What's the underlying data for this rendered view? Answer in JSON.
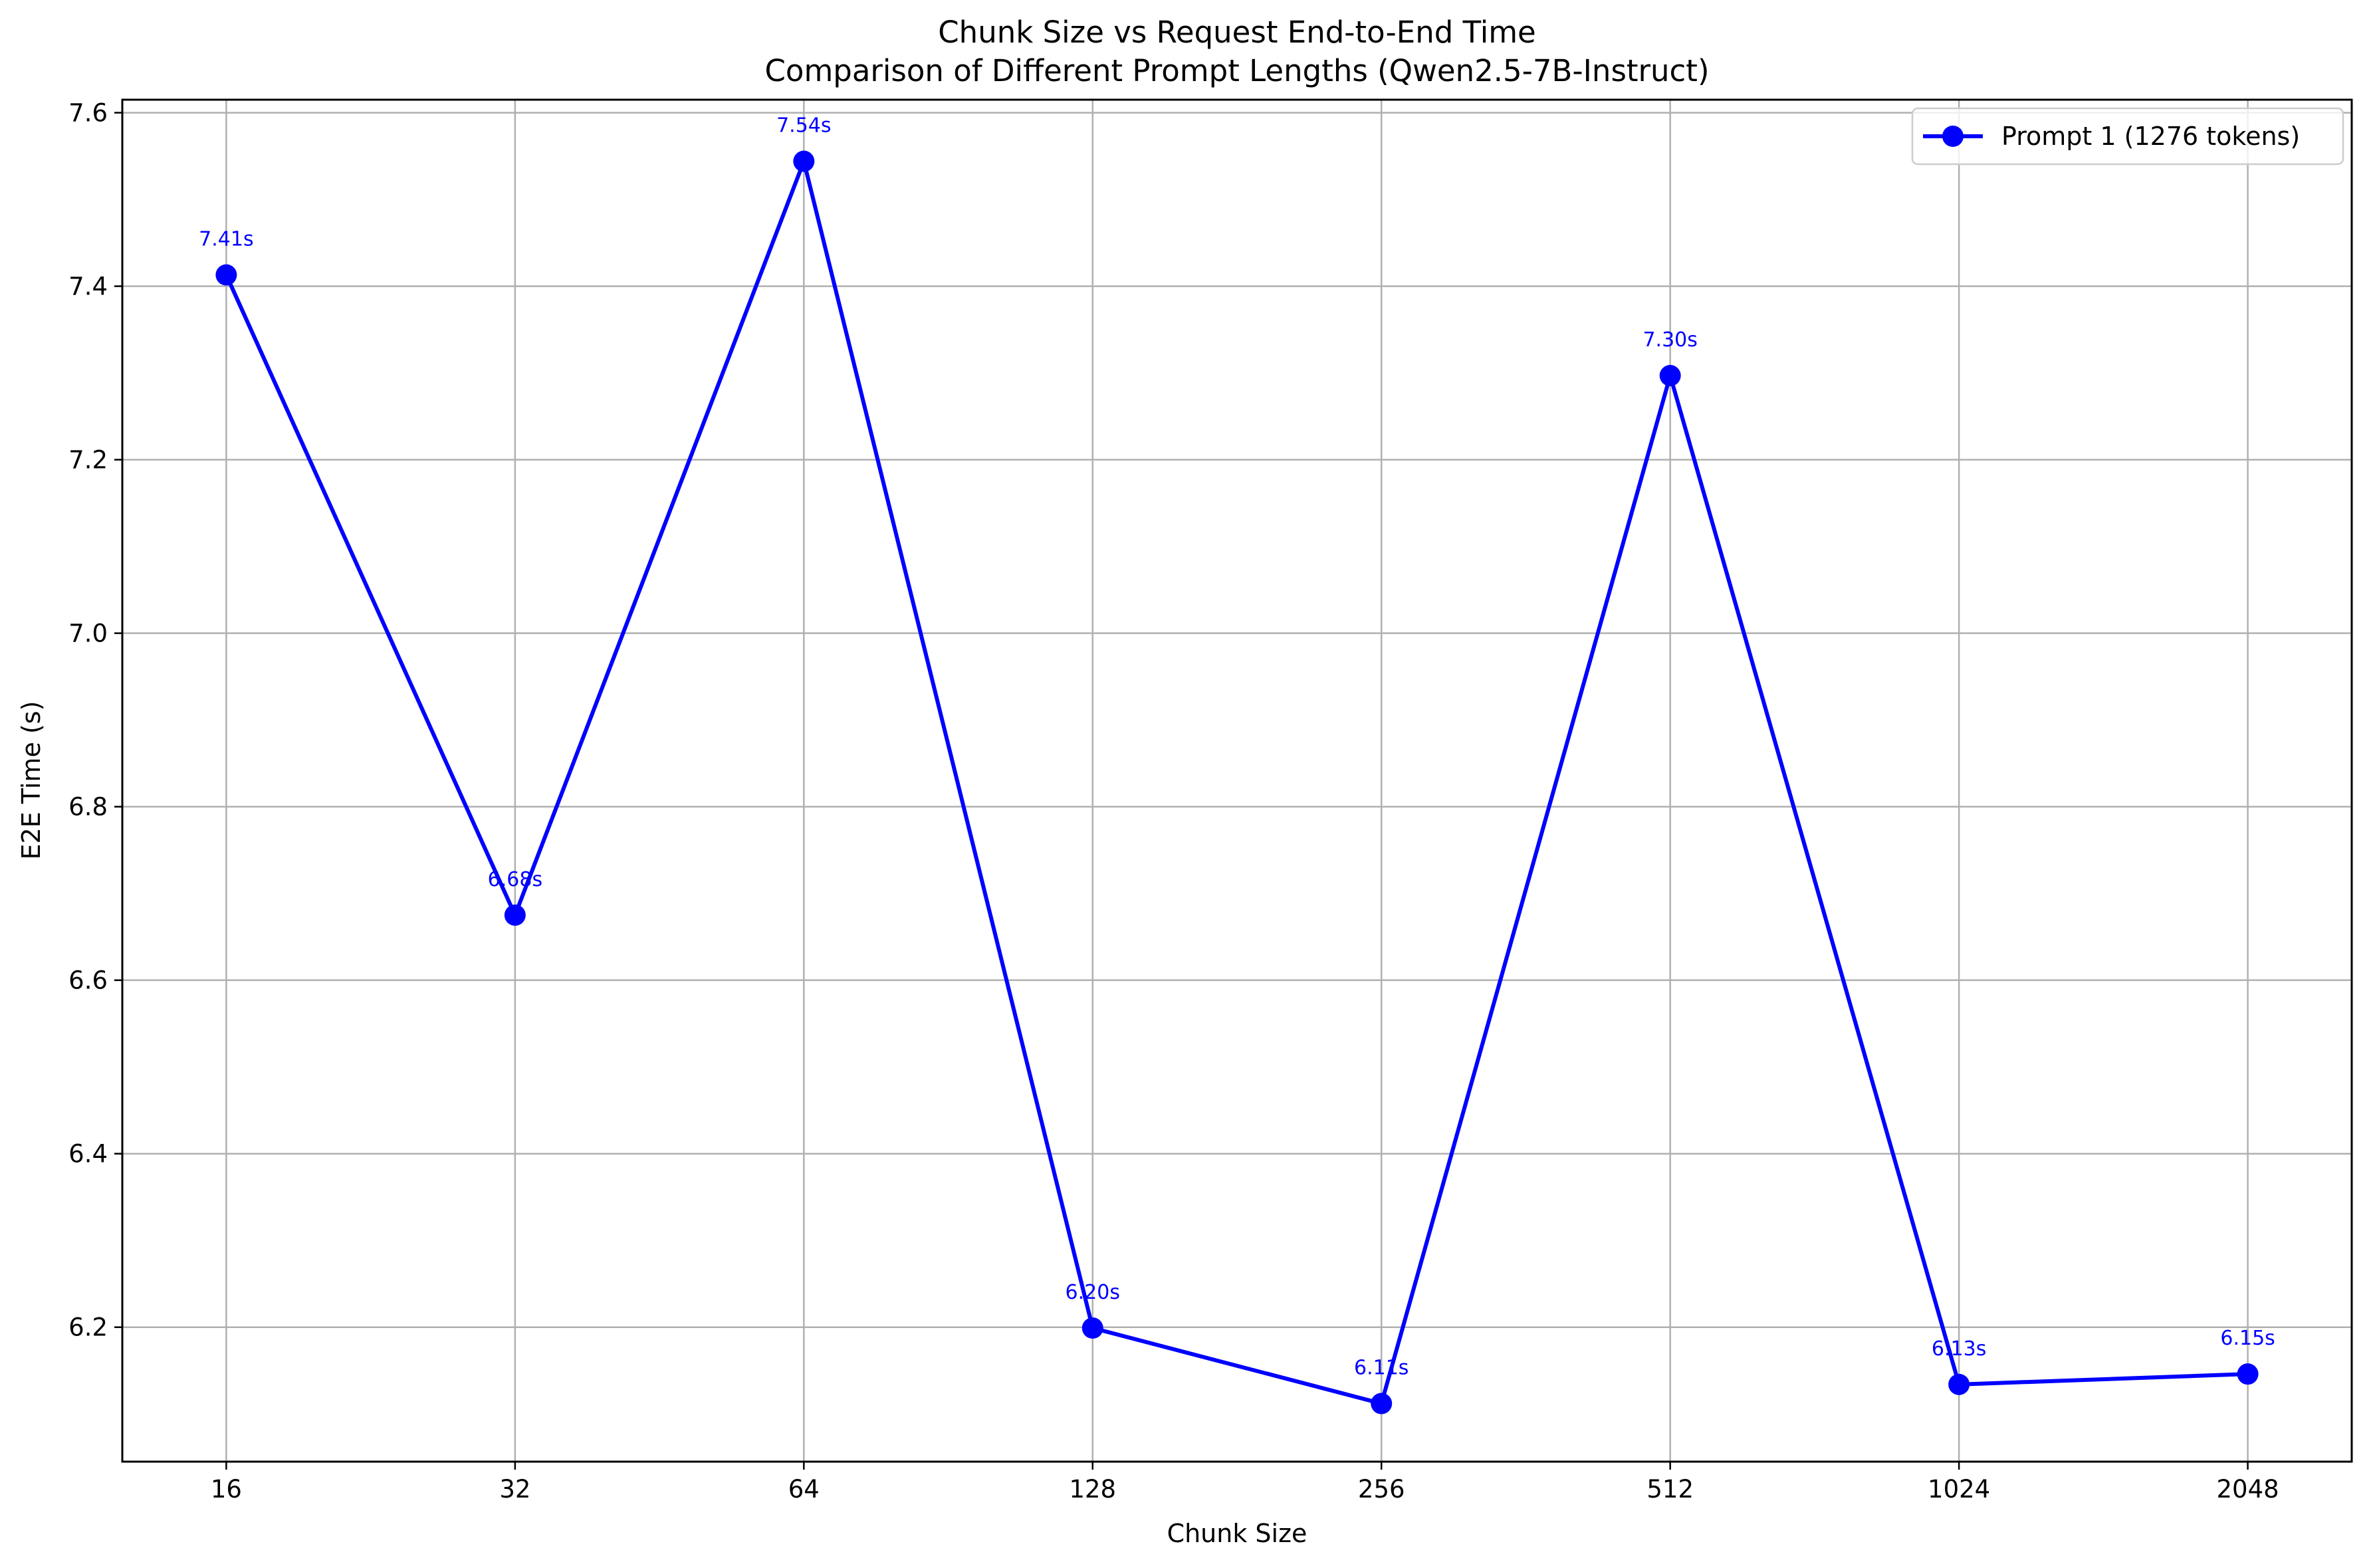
{
  "chart_data": {
    "type": "line",
    "title": "Chunk Size vs Request End-to-End Time",
    "subtitle": "Comparison of Different Prompt Lengths (Qwen2.5-7B-Instruct)",
    "xlabel": "Chunk Size",
    "ylabel": "E2E Time (s)",
    "categories": [
      "16",
      "32",
      "64",
      "128",
      "256",
      "512",
      "1024",
      "2048"
    ],
    "ylim": [
      6.045,
      7.615
    ],
    "yticks": [
      "6.2",
      "6.4",
      "6.6",
      "6.8",
      "7.0",
      "7.2",
      "7.4",
      "7.6"
    ],
    "grid": true,
    "legend_position": "top-right",
    "series": [
      {
        "name": "Prompt 1 (1276 tokens)",
        "color": "#0000ff",
        "marker": "circle",
        "values": [
          7.413,
          6.675,
          7.544,
          6.199,
          6.112,
          7.297,
          6.134,
          6.146
        ],
        "data_labels": [
          "7.41s",
          "6.68s",
          "7.54s",
          "6.20s",
          "6.11s",
          "7.30s",
          "6.13s",
          "6.15s"
        ]
      }
    ]
  }
}
